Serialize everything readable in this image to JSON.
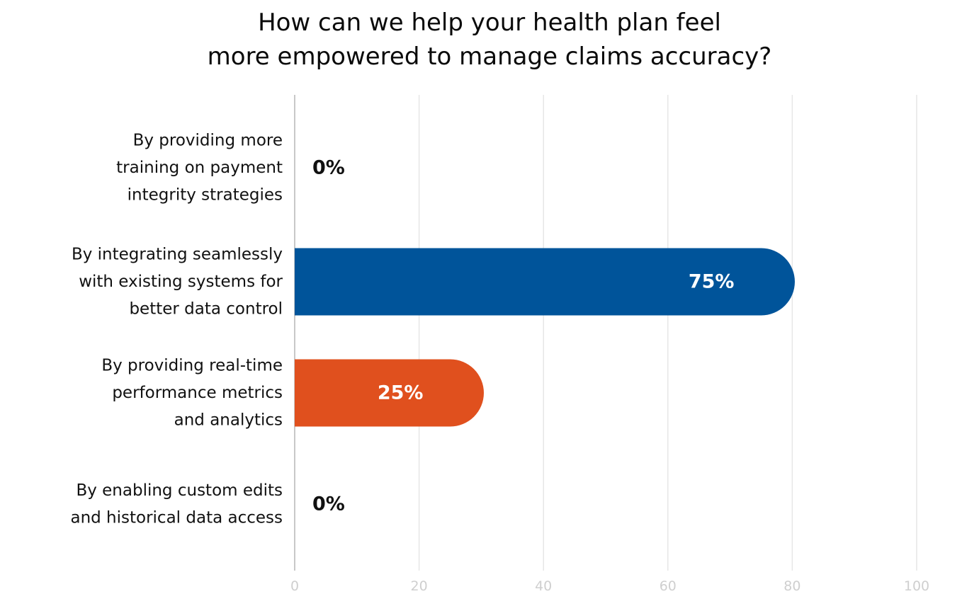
{
  "chart_data": {
    "type": "bar",
    "orientation": "horizontal",
    "title": [
      "How can we help your health plan feel",
      "more empowered to manage claims accuracy?"
    ],
    "categories": [
      [
        "By providing more",
        "training on payment",
        "integrity strategies"
      ],
      [
        "By integrating seamlessly",
        "with existing systems for",
        "better data control"
      ],
      [
        "By providing real-time",
        "performance metrics",
        "and analytics"
      ],
      [
        "By enabling custom edits",
        "and historical data access"
      ]
    ],
    "values": [
      0,
      75,
      25,
      0
    ],
    "value_labels": [
      "0%",
      "75%",
      "25%",
      "0%"
    ],
    "bar_colors": [
      "#00549a",
      "#00549a",
      "#e0501e",
      "#e0501e"
    ],
    "xlim": [
      0,
      100
    ],
    "xticks": [
      "0",
      "20",
      "40",
      "60",
      "80",
      "100"
    ],
    "grid": true,
    "xlabel": "",
    "ylabel": ""
  }
}
